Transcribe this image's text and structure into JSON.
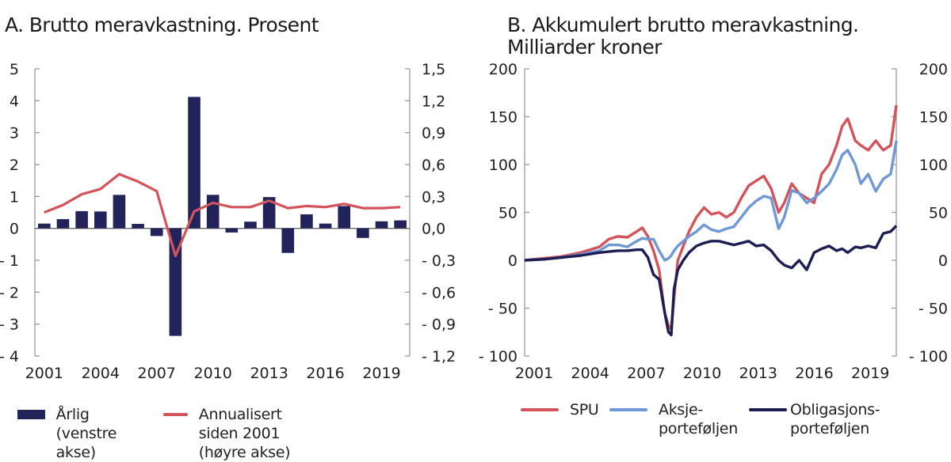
{
  "panels": {
    "a": {
      "title": "A.  Brutto meravkastning. Prosent"
    },
    "b": {
      "title": "B. Akkumulert brutto meravkastning.\nMilliarder kroner"
    }
  },
  "colors": {
    "bar": "#22235a",
    "spu": "#d2545a",
    "aksje": "#6e98d6",
    "obligasjon": "#1d1d55",
    "axis": "#9a9a9a"
  },
  "chart_data": [
    {
      "type": "bar",
      "title": "A.  Brutto meravkastning. Prosent",
      "xlabel": "",
      "ylabel_left": "",
      "ylabel_right": "",
      "x_tick_labels": [
        "2001",
        "2004",
        "2007",
        "2010",
        "2013",
        "2016",
        "2019"
      ],
      "y_left_ticks": [
        "5",
        "4",
        "3",
        "2",
        "1",
        "0",
        "- 1",
        "- 2",
        "- 3",
        "- 4"
      ],
      "y_left_tick_values": [
        5,
        4,
        3,
        2,
        1,
        0,
        -1,
        -2,
        -3,
        -4
      ],
      "y_right_ticks": [
        "1,5",
        "1,2",
        "0,9",
        "0,6",
        "0,3",
        "0,0",
        "- 0,3",
        "- 0,6",
        "- 0,9",
        "- 1,2"
      ],
      "y_right_tick_values": [
        1.5,
        1.2,
        0.9,
        0.6,
        0.3,
        0.0,
        -0.3,
        -0.6,
        -0.9,
        -1.2
      ],
      "ylim_left": [
        -4,
        5
      ],
      "ylim_right": [
        -1.2,
        1.5
      ],
      "grid": false,
      "legend_position": "bottom",
      "categories": [
        2001,
        2002,
        2003,
        2004,
        2005,
        2006,
        2007,
        2008,
        2009,
        2010,
        2011,
        2012,
        2013,
        2014,
        2015,
        2016,
        2017,
        2018,
        2019,
        2020
      ],
      "series": [
        {
          "name": "Årlig\n(venstre akse)",
          "type": "bar",
          "axis": "left",
          "values": [
            0.15,
            0.29,
            0.54,
            0.53,
            1.05,
            0.14,
            -0.24,
            -3.37,
            4.12,
            1.05,
            -0.13,
            0.21,
            0.98,
            -0.77,
            0.44,
            0.15,
            0.7,
            -0.3,
            0.22,
            0.25
          ]
        },
        {
          "name": "Annualisert siden 2001\n(høyre akse)",
          "type": "line",
          "axis": "right",
          "values": [
            0.15,
            0.22,
            0.32,
            0.37,
            0.51,
            0.44,
            0.35,
            -0.26,
            0.16,
            0.24,
            0.2,
            0.2,
            0.26,
            0.19,
            0.21,
            0.2,
            0.23,
            0.19,
            0.19,
            0.2
          ]
        }
      ]
    },
    {
      "type": "line",
      "title": "B. Akkumulert brutto meravkastning. Milliarder kroner",
      "xlabel": "",
      "ylabel": "",
      "x_tick_labels": [
        "2001",
        "2004",
        "2007",
        "2010",
        "2013",
        "2016",
        "2019"
      ],
      "x_range": [
        2001,
        2020.9
      ],
      "y_ticks": [
        "200",
        "150",
        "100",
        "50",
        "0",
        "- 50",
        "- 100"
      ],
      "y_tick_values": [
        200,
        150,
        100,
        50,
        0,
        -50,
        -100
      ],
      "ylim": [
        -100,
        200
      ],
      "grid": false,
      "legend_position": "bottom",
      "x": [
        2001.0,
        2002.0,
        2003.0,
        2004.0,
        2005.0,
        2005.5,
        2006.0,
        2006.5,
        2007.0,
        2007.3,
        2007.6,
        2007.9,
        2008.2,
        2008.5,
        2008.7,
        2008.85,
        2009.0,
        2009.2,
        2009.5,
        2009.8,
        2010.2,
        2010.6,
        2011.0,
        2011.4,
        2011.8,
        2012.2,
        2012.6,
        2013.0,
        2013.4,
        2013.8,
        2014.2,
        2014.6,
        2014.9,
        2015.3,
        2015.7,
        2016.1,
        2016.5,
        2016.9,
        2017.3,
        2017.7,
        2018.0,
        2018.3,
        2018.7,
        2019.0,
        2019.4,
        2019.8,
        2020.2,
        2020.6,
        2020.9
      ],
      "series": [
        {
          "name": "SPU",
          "color_key": "spu",
          "values": [
            0,
            2,
            4,
            8,
            14,
            22,
            25,
            24,
            30,
            34,
            25,
            10,
            -10,
            -55,
            -68,
            -72,
            -40,
            0,
            15,
            30,
            45,
            55,
            48,
            50,
            45,
            50,
            65,
            78,
            83,
            88,
            75,
            50,
            60,
            80,
            70,
            65,
            60,
            90,
            100,
            120,
            140,
            148,
            125,
            120,
            115,
            125,
            115,
            120,
            162
          ]
        },
        {
          "name": "Aksje-\nporteføljen",
          "color_key": "aksje",
          "values": [
            0,
            1,
            3,
            6,
            10,
            16,
            16,
            14,
            20,
            23,
            22,
            22,
            10,
            0,
            2,
            5,
            10,
            15,
            20,
            25,
            30,
            37,
            32,
            30,
            33,
            35,
            45,
            55,
            62,
            67,
            65,
            33,
            45,
            73,
            70,
            60,
            65,
            72,
            80,
            95,
            110,
            115,
            100,
            80,
            90,
            72,
            85,
            90,
            125
          ]
        },
        {
          "name": "Obligasjons-\nporteføljen",
          "color_key": "obligasjon",
          "values": [
            0,
            1,
            3,
            5,
            8,
            9,
            10,
            10,
            11,
            11,
            3,
            -15,
            -20,
            -55,
            -75,
            -78,
            -30,
            -10,
            0,
            8,
            15,
            18,
            20,
            20,
            18,
            16,
            18,
            20,
            15,
            16,
            10,
            0,
            -5,
            -8,
            0,
            -10,
            8,
            12,
            15,
            10,
            12,
            8,
            14,
            13,
            15,
            13,
            28,
            30,
            36
          ]
        }
      ]
    }
  ],
  "legend_a": {
    "bar_label_1": "Årlig",
    "bar_label_2": "(venstre akse)",
    "line_label_1": "Annualisert siden 2001",
    "line_label_2": "(høyre akse)"
  },
  "legend_b": {
    "spu_label": "SPU",
    "aksje_label_1": "Aksje-",
    "aksje_label_2": "porteføljen",
    "oblig_label_1": "Obligasjons-",
    "oblig_label_2": "porteføljen"
  }
}
